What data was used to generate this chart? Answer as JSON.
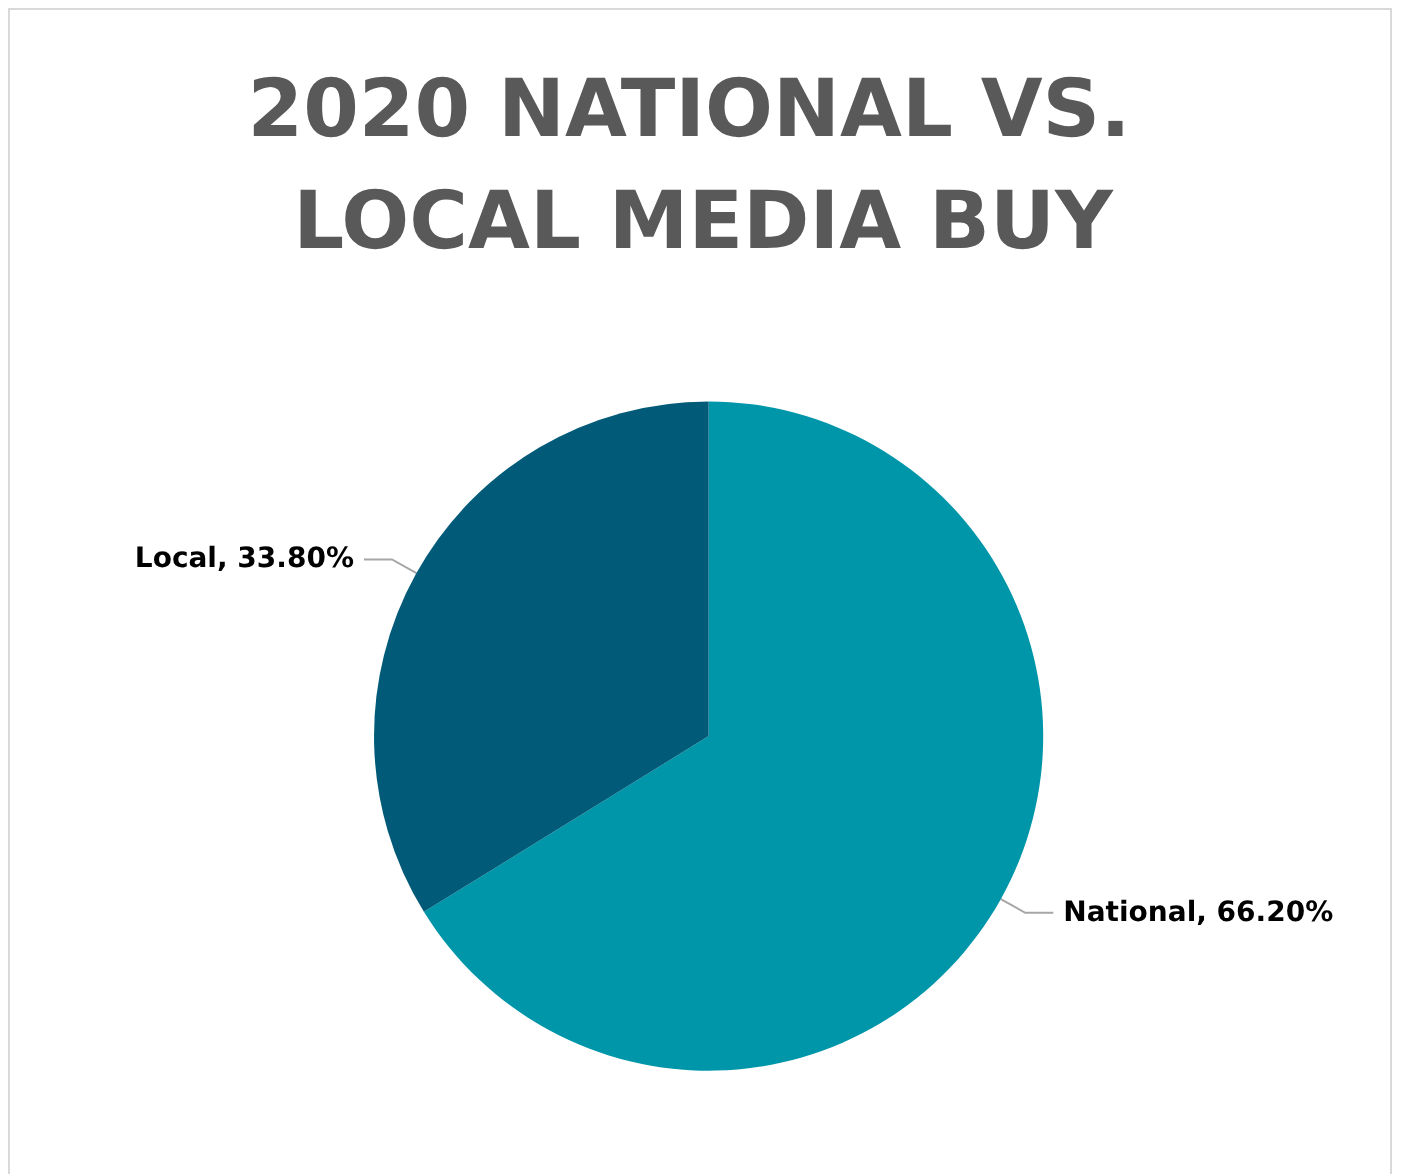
{
  "chart_data": {
    "type": "pie",
    "title": "2020 NATIONAL VS. LOCAL MEDIA BUY",
    "categories": [
      "National",
      "Local"
    ],
    "values": [
      66.2,
      33.8
    ],
    "value_labels": [
      "66.20%",
      "33.80%"
    ],
    "colors": [
      "#0096aa",
      "#005a78"
    ],
    "legend": false
  }
}
